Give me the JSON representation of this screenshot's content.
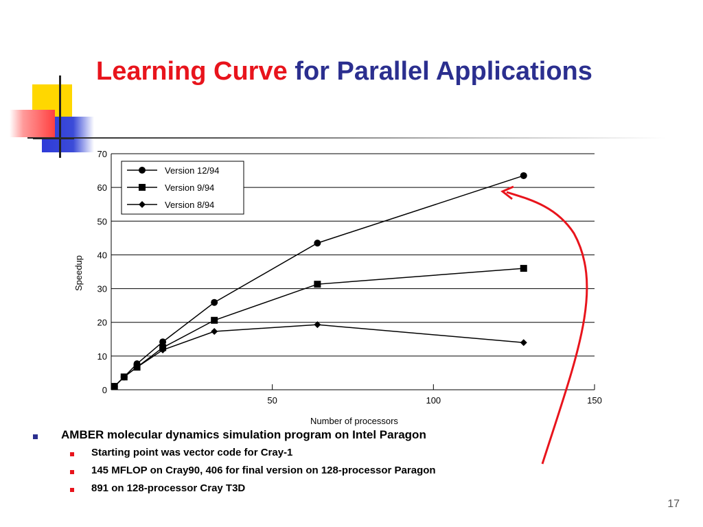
{
  "slide": {
    "title_accent": "Learning Curve",
    "title_rest": " for Parallel Applications",
    "page_number": "17"
  },
  "bullets": [
    {
      "level": 1,
      "text": "AMBER molecular dynamics simulation program on Intel Paragon"
    },
    {
      "level": 2,
      "text": "Starting point was vector code for Cray-1"
    },
    {
      "level": 2,
      "text": "145 MFLOP on Cray90, 406 for final version on 128-processor Paragon"
    },
    {
      "level": 2,
      "text": "891 on 128-processor Cray T3D"
    }
  ],
  "colors": {
    "title": "#2b2f8f",
    "title_accent": "#e8141c",
    "arrow": "#e8141c",
    "series": "#000000"
  },
  "chart_data": {
    "type": "line",
    "title": "",
    "xlabel": "Number of processors",
    "ylabel": "Speedup",
    "xlim": [
      0,
      150
    ],
    "ylim": [
      0,
      70
    ],
    "xticks": [
      50,
      100,
      150
    ],
    "yticks": [
      0,
      10,
      20,
      30,
      40,
      50,
      60,
      70
    ],
    "grid": "horizontal",
    "legend_position": "top-left",
    "series": [
      {
        "name": "Version 12/94",
        "marker": "circle",
        "x": [
          1,
          4,
          8,
          16,
          32,
          64,
          128
        ],
        "y": [
          1,
          3.8,
          7.7,
          14.2,
          25.9,
          43.5,
          63.5
        ]
      },
      {
        "name": "Version 9/94",
        "marker": "square",
        "x": [
          1,
          4,
          8,
          16,
          32,
          64,
          128
        ],
        "y": [
          1,
          3.8,
          6.7,
          12.5,
          20.6,
          31.3,
          36
        ]
      },
      {
        "name": "Version 8/94",
        "marker": "diamond",
        "x": [
          1,
          4,
          8,
          16,
          32,
          64,
          128
        ],
        "y": [
          1,
          3.8,
          6.7,
          11.8,
          17.3,
          19.3,
          14
        ]
      }
    ]
  }
}
